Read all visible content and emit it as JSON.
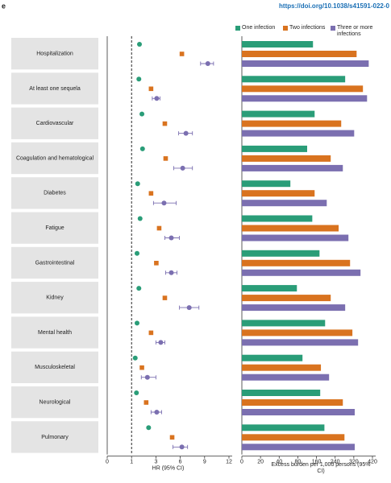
{
  "header": {
    "panel_label": "e",
    "doi": "https://doi.org/10.1038/s41591-022-0"
  },
  "chart_data": [
    {
      "type": "forest",
      "categories": [
        "Hospitalization",
        "At least one sequela",
        "Cardiovascular",
        "Coagulation and hematological",
        "Diabetes",
        "Fatigue",
        "Gastrointestinal",
        "Kidney",
        "Mental health",
        "Musculoskeletal",
        "Neurological",
        "Pulmonary"
      ],
      "x_label": "HR (95% CI)",
      "xlim": [
        0,
        12
      ],
      "xticks": [
        0,
        1,
        3,
        6,
        9,
        12
      ],
      "reference_line": 1,
      "series": [
        {
          "color": "#2a9d78",
          "values": [
            1.65,
            1.6,
            1.85,
            1.9,
            1.5,
            1.7,
            1.45,
            1.6,
            1.45,
            1.3,
            1.4,
            2.4
          ]
        },
        {
          "color": "#d9731f",
          "values": [
            6.2,
            2.6,
            4.1,
            4.2,
            2.6,
            3.4,
            3.05,
            4.1,
            2.6,
            1.85,
            2.2,
            5.0
          ]
        },
        {
          "color": "#7b6fb0",
          "values": [
            9.4,
            3.1,
            6.7,
            6.3,
            4.0,
            4.9,
            4.9,
            7.1,
            3.6,
            2.3,
            3.1,
            6.2
          ],
          "ci_low": [
            8.5,
            2.7,
            5.8,
            5.2,
            2.8,
            4.1,
            4.2,
            5.9,
            3.0,
            1.8,
            2.6,
            5.1
          ],
          "ci_high": [
            10.1,
            3.5,
            7.5,
            7.5,
            5.5,
            5.9,
            5.6,
            8.3,
            4.1,
            3.0,
            3.7,
            6.9
          ]
        }
      ]
    },
    {
      "type": "bar",
      "orientation": "horizontal",
      "x_label": "Excess burden per 1,000 persons (95% CI)",
      "xlim": [
        0,
        420
      ],
      "xticks": [
        0,
        20,
        40,
        80,
        160,
        240,
        320,
        420
      ],
      "legend": "top",
      "series": [
        {
          "name": "One infection",
          "color": "#2a9d78",
          "values": [
            145,
            283,
            152,
            120,
            64,
            142,
            173,
            78,
            197,
            100,
            176,
            194
          ]
        },
        {
          "name": "Two infections",
          "color": "#d9731f",
          "values": [
            335,
            369,
            266,
            221,
            152,
            255,
            304,
            221,
            314,
            179,
            273,
            280
          ]
        },
        {
          "name": "Three or more infections",
          "color": "#7b6fb0",
          "values": [
            400,
            391,
            322,
            273,
            204,
            297,
            356,
            283,
            343,
            214,
            325,
            325
          ]
        }
      ]
    }
  ]
}
